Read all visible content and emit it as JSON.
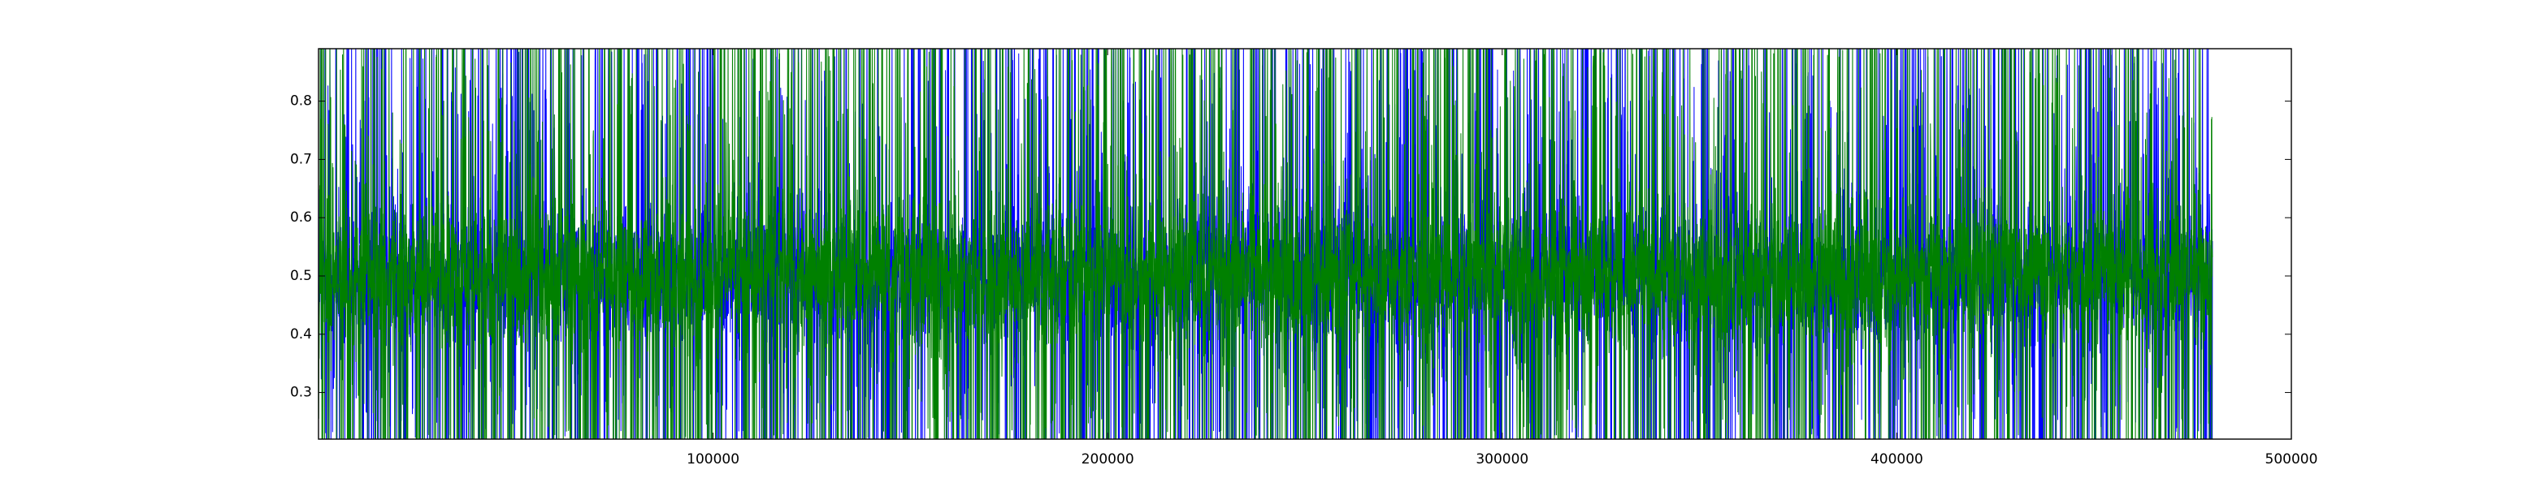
{
  "chart_data": {
    "type": "line",
    "title": "",
    "xlabel": "",
    "ylabel": "",
    "xlim": [
      0,
      500000
    ],
    "ylim": [
      0.22,
      0.89
    ],
    "x_ticks": [
      100000,
      200000,
      300000,
      400000,
      500000
    ],
    "x_tick_labels": [
      "100000",
      "200000",
      "300000",
      "400000",
      "500000"
    ],
    "y_ticks": [
      0.3,
      0.4,
      0.5,
      0.6,
      0.7,
      0.8
    ],
    "y_tick_labels": [
      "0.3",
      "0.4",
      "0.5",
      "0.6",
      "0.7",
      "0.8"
    ],
    "grid": false,
    "legend": "none",
    "series": [
      {
        "color": "#0000ff",
        "x_range": [
          0,
          480000
        ],
        "summary": {
          "center": 0.5,
          "dense_band": [
            0.4,
            0.6
          ],
          "spikes_to": [
            0.22,
            0.89
          ]
        }
      },
      {
        "color": "#008000",
        "x_range": [
          0,
          480000
        ],
        "summary": {
          "center": 0.5,
          "dense_band": [
            0.4,
            0.6
          ],
          "spikes_to": [
            0.22,
            0.89
          ]
        }
      }
    ]
  }
}
